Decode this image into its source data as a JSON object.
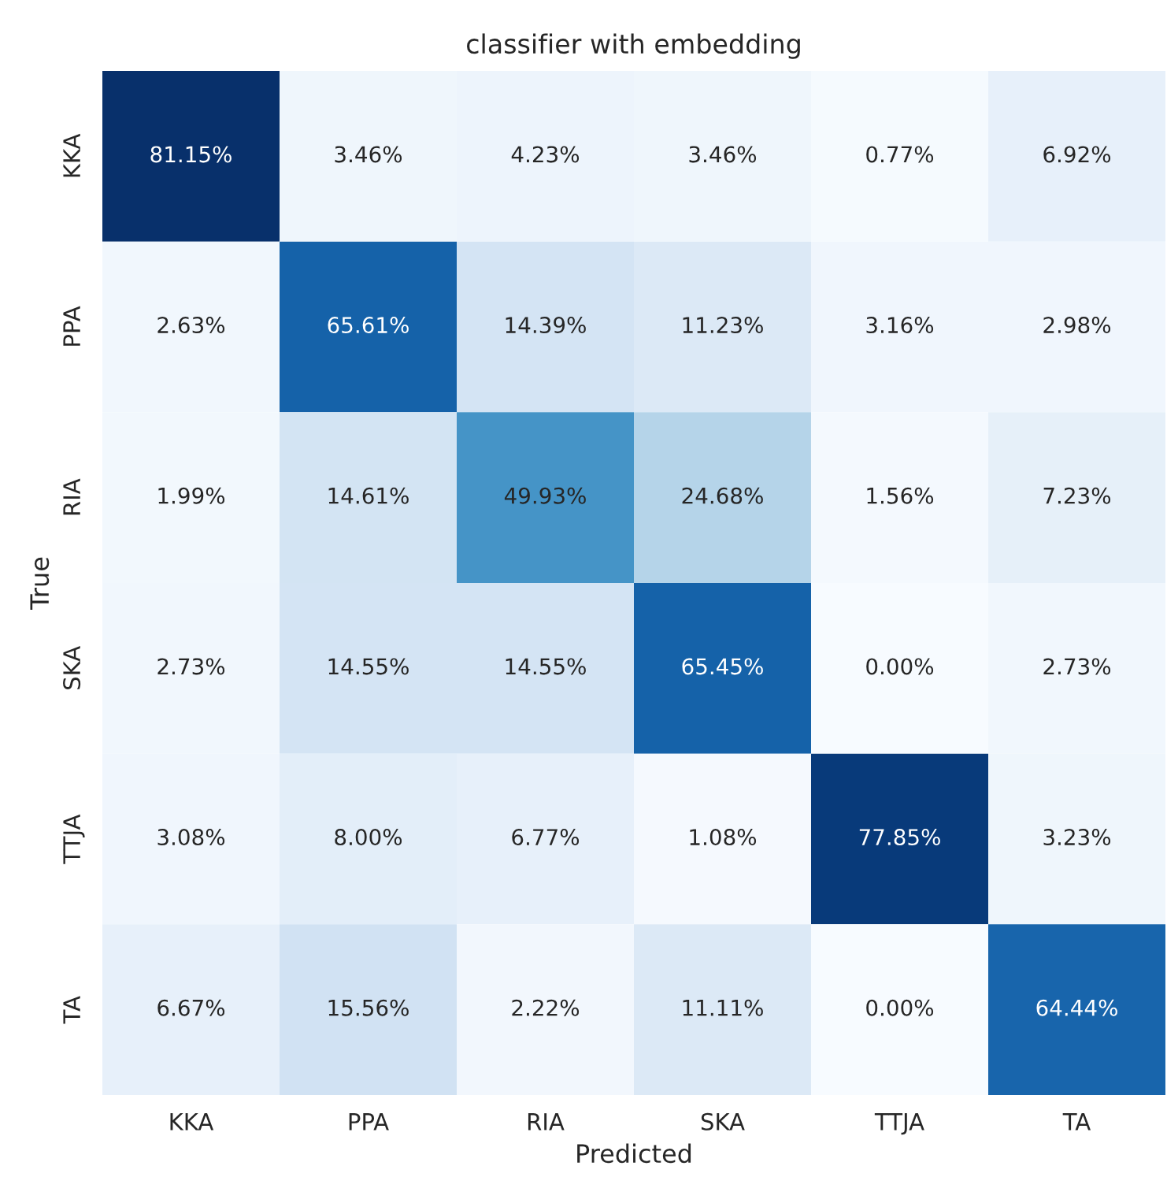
{
  "chart_data": {
    "type": "heatmap",
    "title": "classifier with embedding",
    "xlabel": "Predicted",
    "ylabel": "True",
    "categories": [
      "KKA",
      "PPA",
      "RIA",
      "SKA",
      "TTJA",
      "TA"
    ],
    "y_categories": [
      "KKA",
      "PPA",
      "RIA",
      "SKA",
      "TTJA",
      "TA"
    ],
    "cells": [
      [
        81.15,
        3.46,
        4.23,
        3.46,
        0.77,
        6.92
      ],
      [
        2.63,
        65.61,
        14.39,
        11.23,
        3.16,
        2.98
      ],
      [
        1.99,
        14.61,
        49.93,
        24.68,
        1.56,
        7.23
      ],
      [
        2.73,
        14.55,
        14.55,
        65.45,
        0.0,
        2.73
      ],
      [
        3.08,
        8.0,
        6.77,
        1.08,
        77.85,
        3.23
      ],
      [
        6.67,
        15.56,
        2.22,
        11.11,
        0.0,
        64.44
      ]
    ],
    "cell_labels": [
      [
        "81.15%",
        "3.46%",
        "4.23%",
        "3.46%",
        "0.77%",
        "6.92%"
      ],
      [
        "2.63%",
        "65.61%",
        "14.39%",
        "11.23%",
        "3.16%",
        "2.98%"
      ],
      [
        "1.99%",
        "14.61%",
        "49.93%",
        "24.68%",
        "1.56%",
        "7.23%"
      ],
      [
        "2.73%",
        "14.55%",
        "14.55%",
        "65.45%",
        "0.00%",
        "2.73%"
      ],
      [
        "3.08%",
        "8.00%",
        "6.77%",
        "1.08%",
        "77.85%",
        "3.23%"
      ],
      [
        "6.67%",
        "15.56%",
        "2.22%",
        "11.11%",
        "0.00%",
        "64.44%"
      ]
    ]
  }
}
